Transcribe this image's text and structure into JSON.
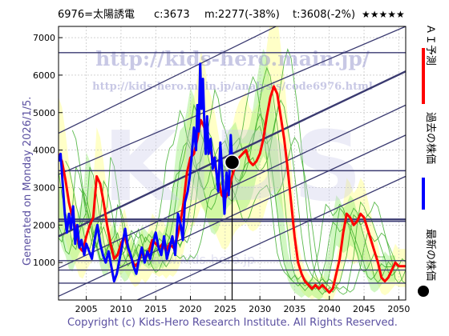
{
  "header": {
    "title": "6976=太陽誘電",
    "current": "c:3673",
    "median": "m:2277(-38%)",
    "target": "t:3608(-2%)",
    "rating": "★★★★★"
  },
  "watermark": {
    "url1": "http://kids-hero.main.jp/",
    "url2": "http://kids-hero.main.jp/analysis/code6976.html",
    "big": "KIDS",
    "faint": "www.kids-hero.jp"
  },
  "left_label": "Generated on Monday 2026/1/5.",
  "footer": "Copyright (c) Kids-Hero Research Institute. All Rights Reserved.",
  "legend": {
    "ai": "ＡＩ予測",
    "past": "過去の株価",
    "latest": "最新の株価",
    "colors": {
      "ai": "#ff0000",
      "past": "#0000ff",
      "latest": "#000000"
    }
  },
  "chart_data": {
    "type": "line",
    "xlim": [
      2001,
      2051
    ],
    "ylim": [
      0,
      7300
    ],
    "xticks": [
      "2005",
      "2010",
      "2015",
      "2020",
      "2025",
      "2030",
      "2035",
      "2040",
      "2045",
      "2050"
    ],
    "yticks": [
      "1000",
      "2000",
      "3000",
      "4000",
      "5000",
      "6000",
      "7000"
    ],
    "grid": true,
    "hlines": [
      6600,
      3450,
      2150,
      2100,
      1050,
      800,
      450
    ],
    "now": {
      "x": 2026,
      "y": 3673
    },
    "past_series": [
      [
        2001.0,
        3700
      ],
      [
        2001.3,
        3900
      ],
      [
        2001.6,
        3100
      ],
      [
        2001.9,
        2300
      ],
      [
        2002.2,
        1800
      ],
      [
        2002.5,
        2300
      ],
      [
        2002.8,
        1900
      ],
      [
        2003.1,
        2500
      ],
      [
        2003.4,
        1500
      ],
      [
        2003.7,
        2000
      ],
      [
        2004.0,
        1400
      ],
      [
        2004.3,
        1600
      ],
      [
        2004.7,
        1200
      ],
      [
        2005.0,
        1500
      ],
      [
        2005.4,
        1300
      ],
      [
        2005.8,
        1100
      ],
      [
        2006.2,
        1600
      ],
      [
        2006.6,
        2000
      ],
      [
        2007.0,
        1500
      ],
      [
        2007.4,
        1200
      ],
      [
        2007.8,
        1000
      ],
      [
        2008.2,
        1300
      ],
      [
        2008.6,
        900
      ],
      [
        2009.0,
        500
      ],
      [
        2009.4,
        700
      ],
      [
        2009.8,
        1100
      ],
      [
        2010.2,
        1500
      ],
      [
        2010.6,
        1900
      ],
      [
        2011.0,
        1400
      ],
      [
        2011.4,
        1200
      ],
      [
        2011.8,
        900
      ],
      [
        2012.2,
        700
      ],
      [
        2012.6,
        1100
      ],
      [
        2013.0,
        1400
      ],
      [
        2013.4,
        1000
      ],
      [
        2013.8,
        1300
      ],
      [
        2014.2,
        1100
      ],
      [
        2014.6,
        1500
      ],
      [
        2015.0,
        1800
      ],
      [
        2015.4,
        1400
      ],
      [
        2015.8,
        1200
      ],
      [
        2016.2,
        1700
      ],
      [
        2016.6,
        1100
      ],
      [
        2017.0,
        1400
      ],
      [
        2017.4,
        1700
      ],
      [
        2017.8,
        1200
      ],
      [
        2018.2,
        2300
      ],
      [
        2018.6,
        2000
      ],
      [
        2018.9,
        1600
      ],
      [
        2019.2,
        2600
      ],
      [
        2019.6,
        2900
      ],
      [
        2019.9,
        3300
      ],
      [
        2020.2,
        3900
      ],
      [
        2020.5,
        4600
      ],
      [
        2020.8,
        4000
      ],
      [
        2021.0,
        5200
      ],
      [
        2021.2,
        4500
      ],
      [
        2021.4,
        6300
      ],
      [
        2021.6,
        5100
      ],
      [
        2021.8,
        5900
      ],
      [
        2022.0,
        4700
      ],
      [
        2022.2,
        3900
      ],
      [
        2022.4,
        4900
      ],
      [
        2022.6,
        3900
      ],
      [
        2022.9,
        4300
      ],
      [
        2023.2,
        3500
      ],
      [
        2023.5,
        3800
      ],
      [
        2023.8,
        3300
      ],
      [
        2024.0,
        2900
      ],
      [
        2024.3,
        4200
      ],
      [
        2024.6,
        3300
      ],
      [
        2024.9,
        2300
      ],
      [
        2025.2,
        3400
      ],
      [
        2025.5,
        2800
      ],
      [
        2025.8,
        4400
      ],
      [
        2026.0,
        3673
      ]
    ],
    "ai_series": [
      [
        2001.0,
        3900
      ],
      [
        2001.5,
        3700
      ],
      [
        2002.0,
        3200
      ],
      [
        2002.5,
        2600
      ],
      [
        2003.0,
        2200
      ],
      [
        2003.5,
        1900
      ],
      [
        2004.0,
        1400
      ],
      [
        2004.5,
        1300
      ],
      [
        2005.0,
        1700
      ],
      [
        2005.5,
        2000
      ],
      [
        2006.0,
        2200
      ],
      [
        2006.5,
        3300
      ],
      [
        2007.0,
        3100
      ],
      [
        2007.5,
        2600
      ],
      [
        2008.0,
        2000
      ],
      [
        2008.5,
        1500
      ],
      [
        2009.0,
        1100
      ],
      [
        2009.5,
        1200
      ],
      [
        2010.0,
        1500
      ],
      [
        2010.5,
        1700
      ],
      [
        2011.0,
        1400
      ],
      [
        2011.5,
        1100
      ],
      [
        2012.0,
        900
      ],
      [
        2012.5,
        1000
      ],
      [
        2013.0,
        1300
      ],
      [
        2013.5,
        1100
      ],
      [
        2014.0,
        1300
      ],
      [
        2014.5,
        1600
      ],
      [
        2015.0,
        1500
      ],
      [
        2015.5,
        1400
      ],
      [
        2016.0,
        1500
      ],
      [
        2016.5,
        1300
      ],
      [
        2017.0,
        1500
      ],
      [
        2017.5,
        1400
      ],
      [
        2018.0,
        1600
      ],
      [
        2018.5,
        2000
      ],
      [
        2019.0,
        2600
      ],
      [
        2019.5,
        3400
      ],
      [
        2020.0,
        3800
      ],
      [
        2020.5,
        3900
      ],
      [
        2021.0,
        4300
      ],
      [
        2021.5,
        4800
      ],
      [
        2022.0,
        4600
      ],
      [
        2022.5,
        4100
      ],
      [
        2023.0,
        3900
      ],
      [
        2023.5,
        3600
      ],
      [
        2024.0,
        3200
      ],
      [
        2024.5,
        2800
      ],
      [
        2025.0,
        2700
      ],
      [
        2025.5,
        2900
      ],
      [
        2026.0,
        3300
      ],
      [
        2026.5,
        3600
      ],
      [
        2027.0,
        3800
      ],
      [
        2027.5,
        3900
      ],
      [
        2028.0,
        4000
      ],
      [
        2028.5,
        3700
      ],
      [
        2029.0,
        3600
      ],
      [
        2029.5,
        3700
      ],
      [
        2030.0,
        3900
      ],
      [
        2030.5,
        4300
      ],
      [
        2031.0,
        4900
      ],
      [
        2031.5,
        5400
      ],
      [
        2032.0,
        5700
      ],
      [
        2032.5,
        5500
      ],
      [
        2033.0,
        4900
      ],
      [
        2033.5,
        4300
      ],
      [
        2034.0,
        3500
      ],
      [
        2034.5,
        2600
      ],
      [
        2035.0,
        1700
      ],
      [
        2035.5,
        1000
      ],
      [
        2036.0,
        700
      ],
      [
        2036.5,
        500
      ],
      [
        2037.0,
        400
      ],
      [
        2037.5,
        300
      ],
      [
        2038.0,
        400
      ],
      [
        2038.5,
        300
      ],
      [
        2039.0,
        400
      ],
      [
        2039.5,
        300
      ],
      [
        2040.0,
        200
      ],
      [
        2040.5,
        300
      ],
      [
        2041.0,
        700
      ],
      [
        2041.5,
        1100
      ],
      [
        2042.0,
        1800
      ],
      [
        2042.5,
        2300
      ],
      [
        2043.0,
        2200
      ],
      [
        2043.5,
        2000
      ],
      [
        2044.0,
        2100
      ],
      [
        2044.5,
        2300
      ],
      [
        2045.0,
        2200
      ],
      [
        2045.5,
        1900
      ],
      [
        2046.0,
        1600
      ],
      [
        2046.5,
        1300
      ],
      [
        2047.0,
        1000
      ],
      [
        2047.5,
        600
      ],
      [
        2048.0,
        500
      ],
      [
        2048.5,
        600
      ],
      [
        2049.0,
        800
      ],
      [
        2049.5,
        1000
      ],
      [
        2050.0,
        900
      ],
      [
        2050.5,
        900
      ],
      [
        2051.0,
        900
      ]
    ]
  }
}
